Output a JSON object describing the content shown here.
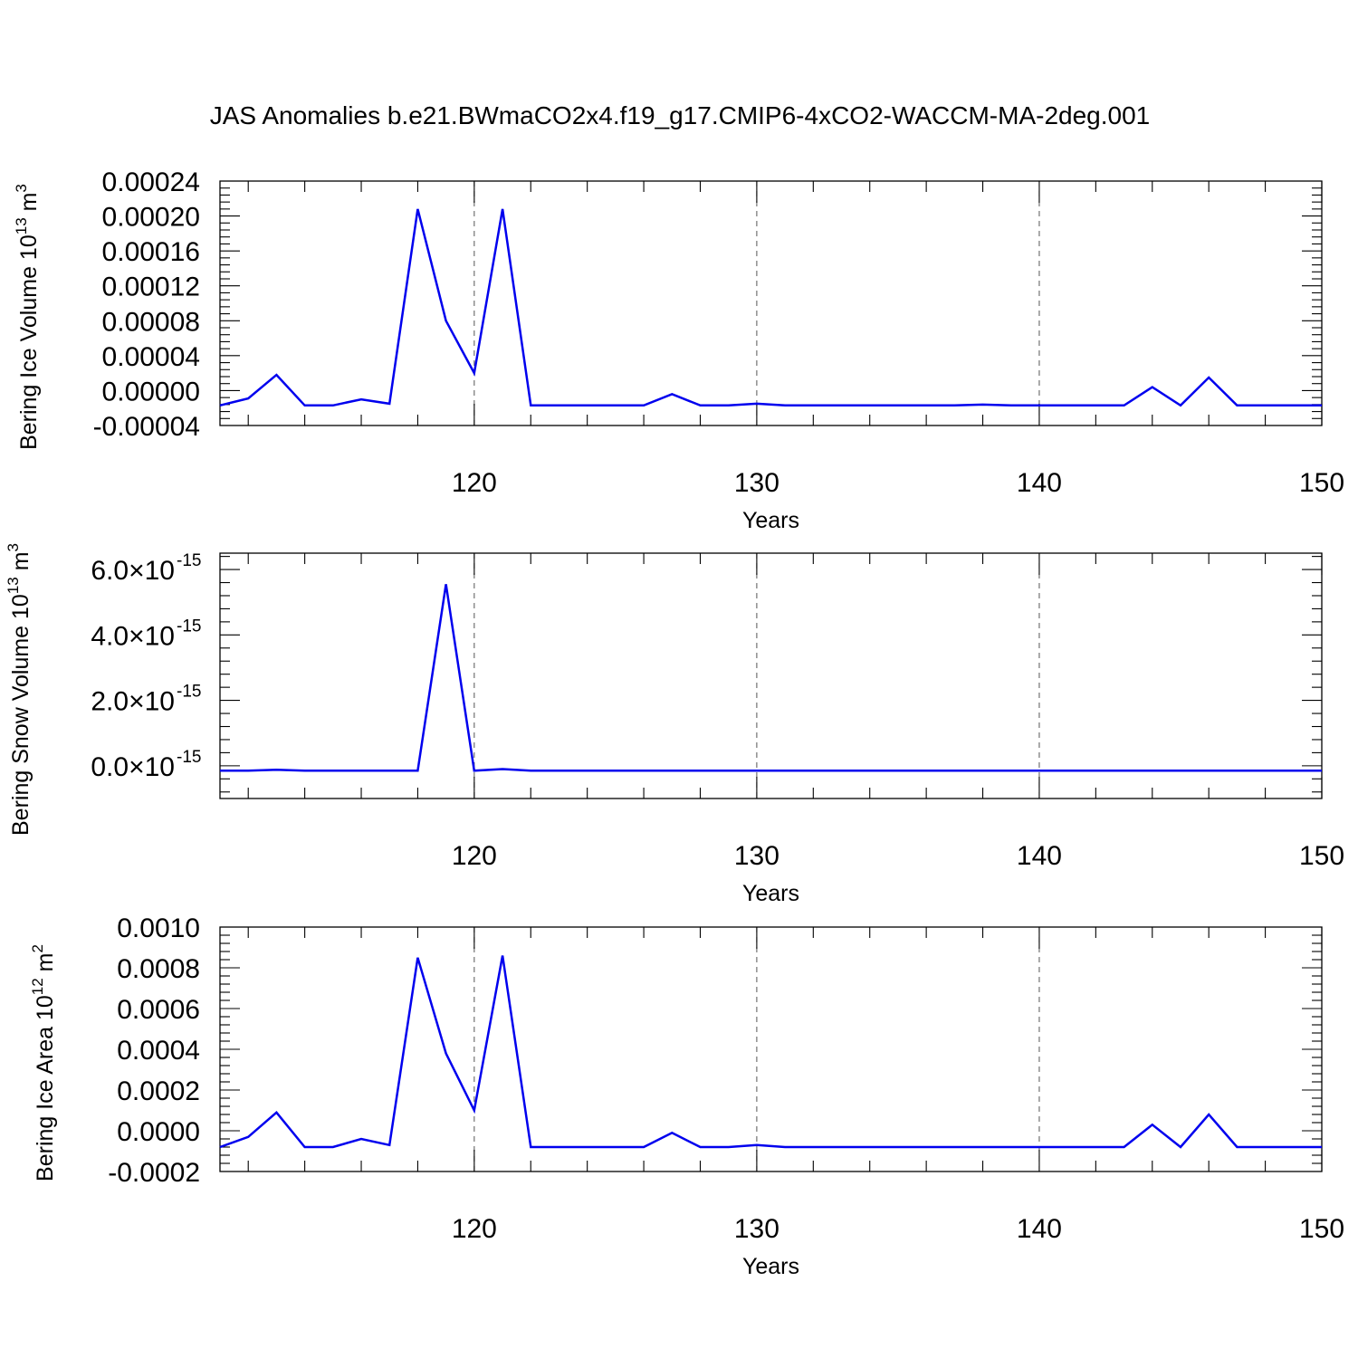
{
  "figure": {
    "title": "JAS Anomalies b.e21.BWmaCO2x4.f19_g17.CMIP6-4xCO2-WACCM-MA-2deg.001"
  },
  "colors": {
    "series": "#0000ee",
    "axis": "#000000",
    "grid": "#555555"
  },
  "chart_data": [
    {
      "type": "line",
      "ylabel": "Bering Ice Volume 10",
      "ylabel_sup": "13",
      "ylabel_unit": " m",
      "ylabel_unit_sup": "3",
      "xlabel": "Years",
      "xlim": [
        111,
        150
      ],
      "ylim": [
        -4e-05,
        0.00024
      ],
      "xticks": [
        120,
        130,
        140,
        150
      ],
      "xtick_labels": [
        "120",
        "130",
        "140",
        "150"
      ],
      "yticks": [
        -4e-05,
        0.0,
        4e-05,
        8e-05,
        0.00012,
        0.00016,
        0.0002,
        0.00024
      ],
      "ytick_labels": [
        "-0.00004",
        "0.00000",
        "0.00004",
        "0.00008",
        "0.00012",
        "0.00016",
        "0.00020",
        "0.00024"
      ],
      "grid_x": true,
      "series": [
        {
          "x": [
            111,
            112,
            113,
            114,
            115,
            116,
            117,
            118,
            119,
            120,
            121,
            122,
            123,
            124,
            125,
            126,
            127,
            128,
            129,
            130,
            131,
            132,
            133,
            134,
            135,
            136,
            137,
            138,
            139,
            140,
            141,
            142,
            143,
            144,
            145,
            146,
            147,
            148,
            149,
            150
          ],
          "values": [
            -1.7e-05,
            -9e-06,
            1.8e-05,
            -1.7e-05,
            -1.7e-05,
            -1e-05,
            -1.5e-05,
            0.000208,
            8e-05,
            2e-05,
            0.000208,
            -1.7e-05,
            -1.7e-05,
            -1.7e-05,
            -1.7e-05,
            -1.7e-05,
            -4e-06,
            -1.7e-05,
            -1.7e-05,
            -1.5e-05,
            -1.7e-05,
            -1.7e-05,
            -1.7e-05,
            -1.7e-05,
            -1.7e-05,
            -1.7e-05,
            -1.7e-05,
            -1.6e-05,
            -1.7e-05,
            -1.7e-05,
            -1.7e-05,
            -1.7e-05,
            -1.7e-05,
            4e-06,
            -1.7e-05,
            1.5e-05,
            -1.7e-05,
            -1.7e-05,
            -1.7e-05,
            -1.7e-05
          ]
        }
      ]
    },
    {
      "type": "line",
      "ylabel": "Bering Snow Volume 10",
      "ylabel_sup": "13",
      "ylabel_unit": " m",
      "ylabel_unit_sup": "3",
      "xlabel": "Years",
      "xlim": [
        111,
        150
      ],
      "ylim": [
        -1e-15,
        6.5e-15
      ],
      "xticks": [
        120,
        130,
        140,
        150
      ],
      "xtick_labels": [
        "120",
        "130",
        "140",
        "150"
      ],
      "yticks": [
        0.0,
        2e-15,
        4e-15,
        6e-15
      ],
      "ytick_labels": [
        {
          "mantissa": "0.0",
          "times": "×",
          "base": "10",
          "exp": "-15"
        },
        {
          "mantissa": "2.0",
          "times": "×",
          "base": "10",
          "exp": "-15"
        },
        {
          "mantissa": "4.0",
          "times": "×",
          "base": "10",
          "exp": "-15"
        },
        {
          "mantissa": "6.0",
          "times": "×",
          "base": "10",
          "exp": "-15"
        }
      ],
      "grid_x": true,
      "series": [
        {
          "x": [
            111,
            112,
            113,
            114,
            115,
            116,
            117,
            118,
            119,
            120,
            121,
            122,
            123,
            124,
            125,
            126,
            127,
            128,
            129,
            130,
            131,
            132,
            133,
            134,
            135,
            136,
            137,
            138,
            139,
            140,
            141,
            142,
            143,
            144,
            145,
            146,
            147,
            148,
            149,
            150
          ],
          "values": [
            -1.5e-16,
            -1.5e-16,
            -1.2e-16,
            -1.5e-16,
            -1.5e-16,
            -1.5e-16,
            -1.5e-16,
            -1.5e-16,
            5.55e-15,
            -1.5e-16,
            -1e-16,
            -1.5e-16,
            -1.5e-16,
            -1.5e-16,
            -1.5e-16,
            -1.5e-16,
            -1.5e-16,
            -1.5e-16,
            -1.5e-16,
            -1.5e-16,
            -1.5e-16,
            -1.5e-16,
            -1.5e-16,
            -1.5e-16,
            -1.5e-16,
            -1.5e-16,
            -1.5e-16,
            -1.5e-16,
            -1.5e-16,
            -1.5e-16,
            -1.5e-16,
            -1.5e-16,
            -1.5e-16,
            -1.5e-16,
            -1.5e-16,
            -1.5e-16,
            -1.5e-16,
            -1.5e-16,
            -1.5e-16,
            -1.5e-16
          ]
        }
      ]
    },
    {
      "type": "line",
      "ylabel": "Bering Ice Area 10",
      "ylabel_sup": "12",
      "ylabel_unit": " m",
      "ylabel_unit_sup": "2",
      "xlabel": "Years",
      "xlim": [
        111,
        150
      ],
      "ylim": [
        -0.0002,
        0.001
      ],
      "xticks": [
        120,
        130,
        140,
        150
      ],
      "xtick_labels": [
        "120",
        "130",
        "140",
        "150"
      ],
      "yticks": [
        -0.0002,
        0.0,
        0.0002,
        0.0004,
        0.0006,
        0.0008,
        0.001
      ],
      "ytick_labels": [
        "-0.0002",
        "0.0000",
        "0.0002",
        "0.0004",
        "0.0006",
        "0.0008",
        "0.0010"
      ],
      "grid_x": true,
      "series": [
        {
          "x": [
            111,
            112,
            113,
            114,
            115,
            116,
            117,
            118,
            119,
            120,
            121,
            122,
            123,
            124,
            125,
            126,
            127,
            128,
            129,
            130,
            131,
            132,
            133,
            134,
            135,
            136,
            137,
            138,
            139,
            140,
            141,
            142,
            143,
            144,
            145,
            146,
            147,
            148,
            149,
            150
          ],
          "values": [
            -8e-05,
            -3e-05,
            9e-05,
            -8e-05,
            -8e-05,
            -4e-05,
            -7e-05,
            0.00085,
            0.00038,
            0.0001,
            0.00086,
            -8e-05,
            -8e-05,
            -8e-05,
            -8e-05,
            -8e-05,
            -1e-05,
            -8e-05,
            -8e-05,
            -7e-05,
            -8e-05,
            -8e-05,
            -8e-05,
            -8e-05,
            -8e-05,
            -8e-05,
            -8e-05,
            -8e-05,
            -8e-05,
            -8e-05,
            -8e-05,
            -8e-05,
            -8e-05,
            3e-05,
            -8e-05,
            8e-05,
            -8e-05,
            -8e-05,
            -8e-05,
            -8e-05
          ]
        }
      ]
    }
  ]
}
